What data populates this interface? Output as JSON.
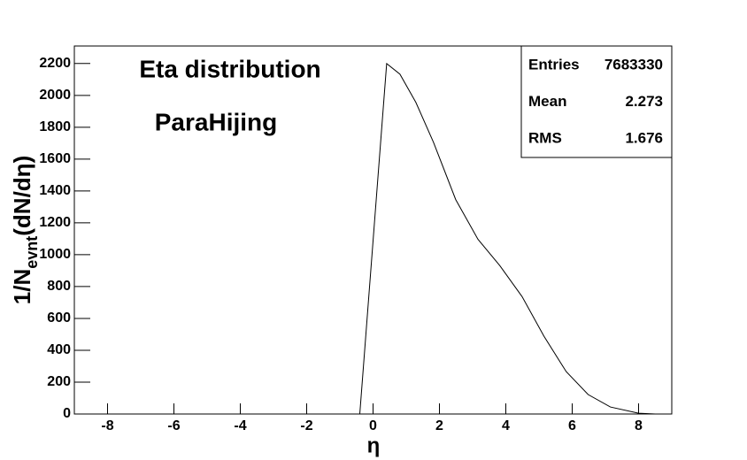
{
  "chart_data": {
    "type": "line",
    "title": "Eta distribution",
    "subtitle": "ParaHijing",
    "xlabel": "η",
    "ylabel": {
      "main": "1/N",
      "sub": "evnt",
      "tail": "(dN/dη)"
    },
    "x": [
      -0.4,
      0.41,
      0.81,
      1.29,
      1.82,
      2.49,
      3.16,
      3.82,
      4.49,
      5.15,
      5.82,
      6.48,
      7.15,
      8.0,
      8.5
    ],
    "values": [
      0,
      2200,
      2133,
      1956,
      1706,
      1346,
      1097,
      931,
      737,
      488,
      266,
      122,
      44,
      5,
      0
    ],
    "color": "#000000",
    "xlim": [
      -9,
      9
    ],
    "xticks": [
      -8,
      -6,
      -4,
      -2,
      0,
      2,
      4,
      6,
      8
    ],
    "ylim": [
      0,
      2310
    ],
    "yticks": [
      0,
      200,
      400,
      600,
      800,
      1000,
      1200,
      1400,
      1600,
      1800,
      2000,
      2200
    ],
    "stats": [
      {
        "label": "Entries",
        "value": 7683330
      },
      {
        "label": "Mean",
        "value": 2.273
      },
      {
        "label": "RMS",
        "value": 1.676
      }
    ]
  }
}
